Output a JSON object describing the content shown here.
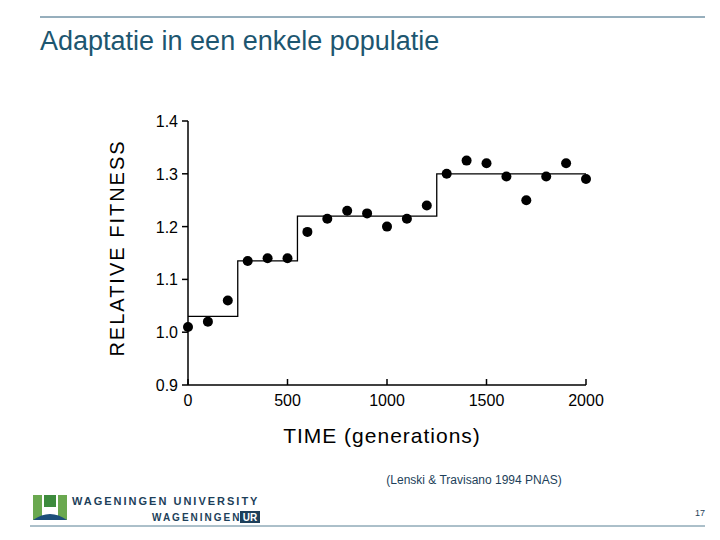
{
  "slide": {
    "title": "Adaptatie in een enkele populatie",
    "citation": "(Lenski & Travisano 1994 PNAS)",
    "page_number": 17,
    "logo_top": "WAGENINGEN UNIVERSITY",
    "logo_bottom_left": "WAGENINGEN",
    "logo_bottom_right": "UR"
  },
  "chart_data": {
    "type": "scatter",
    "x_label": "TIME (generations)",
    "y_label": "RELATIVE FITNESS",
    "xlim": [
      0,
      2000
    ],
    "xticks": [
      0,
      500,
      1000,
      1500,
      2000
    ],
    "ylim": [
      0.9,
      1.4
    ],
    "yticks": [
      0.9,
      {
        "value": 1,
        "label": "1.0"
      },
      1.1,
      1.2,
      1.3,
      1.4
    ],
    "grid": false,
    "series": [
      {
        "type": "scatter",
        "marker": "circle",
        "color": "#000000",
        "x": [
          0,
          100,
          200,
          300,
          400,
          500,
          600,
          700,
          800,
          900,
          1000,
          1100,
          1200,
          1300,
          1400,
          1500,
          1600,
          1700,
          1800,
          1900,
          2000
        ],
        "values": [
          1.01,
          1.02,
          1.06,
          1.135,
          1.14,
          1.14,
          1.19,
          1.215,
          1.23,
          1.225,
          1.2,
          1.215,
          1.24,
          1.3,
          1.325,
          1.32,
          1.295,
          1.25,
          1.295,
          1.32,
          1.29
        ]
      },
      {
        "type": "line",
        "line_style": "step",
        "color": "#000000",
        "x": [
          0,
          250,
          550,
          1250,
          2000
        ],
        "values": [
          1.03,
          1.135,
          1.22,
          1.3,
          1.3
        ]
      }
    ]
  }
}
